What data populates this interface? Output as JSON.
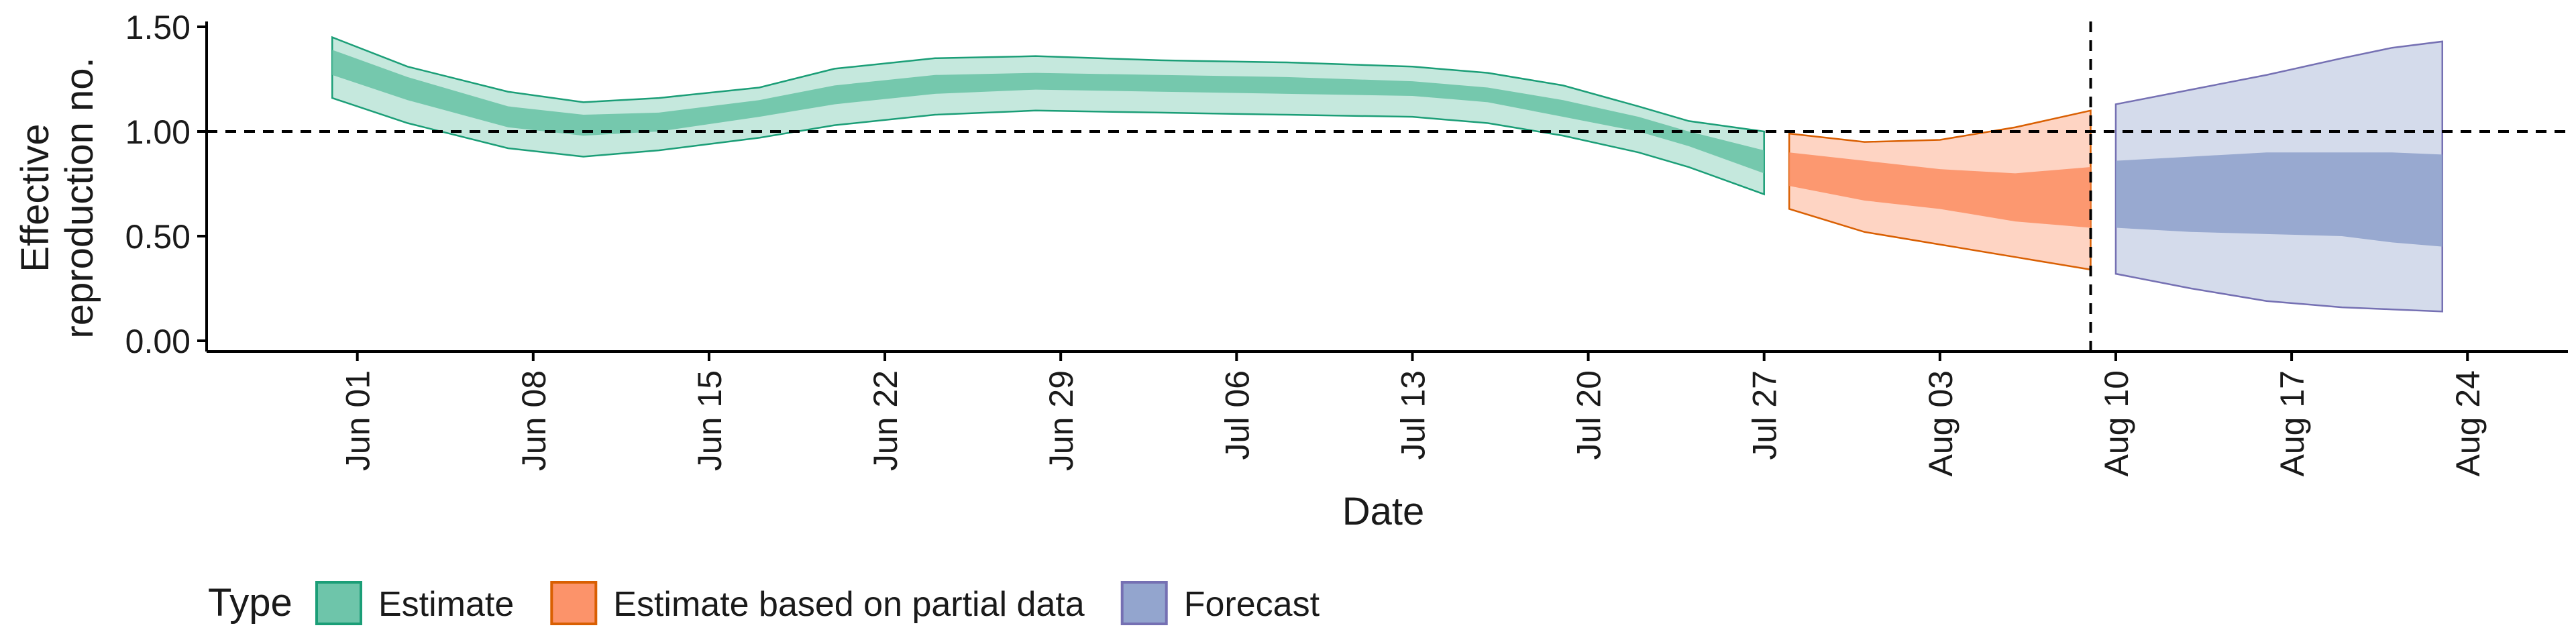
{
  "chart_data": {
    "type": "area",
    "xlabel": "Date",
    "ylabel_lines": [
      "Effective",
      "reproduction no."
    ],
    "ylim": [
      0,
      1.5
    ],
    "yticks": [
      0.0,
      0.5,
      1.0,
      1.5
    ],
    "ytick_labels": [
      "0.00",
      "0.50",
      "1.00",
      "1.50"
    ],
    "xlim": [
      "2020-05-26",
      "2020-08-28"
    ],
    "x_tick_labels": [
      "Jun 01",
      "Jun 08",
      "Jun 15",
      "Jun 22",
      "Jun 29",
      "Jul 06",
      "Jul 13",
      "Jul 20",
      "Jul 27",
      "Aug 03",
      "Aug 10",
      "Aug 17",
      "Aug 24"
    ],
    "x_tick_dates": [
      "2020-06-01",
      "2020-06-08",
      "2020-06-15",
      "2020-06-22",
      "2020-06-29",
      "2020-07-06",
      "2020-07-13",
      "2020-07-20",
      "2020-07-27",
      "2020-08-03",
      "2020-08-10",
      "2020-08-17",
      "2020-08-24"
    ],
    "reference_hline": 1.0,
    "reference_vline": "2020-08-09",
    "legend": {
      "title": "Type",
      "position": "bottom-left",
      "items": [
        "Estimate",
        "Estimate based on partial data",
        "Forecast"
      ]
    },
    "series": [
      {
        "name": "Estimate",
        "fill": "#66c2a5",
        "stroke": "#1b9e77",
        "points": [
          {
            "date": "2020-05-31",
            "lo90": 1.16,
            "lo50": 1.27,
            "hi50": 1.39,
            "hi90": 1.45
          },
          {
            "date": "2020-06-03",
            "lo90": 1.04,
            "lo50": 1.15,
            "hi50": 1.26,
            "hi90": 1.31
          },
          {
            "date": "2020-06-07",
            "lo90": 0.92,
            "lo50": 1.02,
            "hi50": 1.12,
            "hi90": 1.19
          },
          {
            "date": "2020-06-10",
            "lo90": 0.88,
            "lo50": 0.98,
            "hi50": 1.08,
            "hi90": 1.14
          },
          {
            "date": "2020-06-13",
            "lo90": 0.91,
            "lo50": 1.0,
            "hi50": 1.09,
            "hi90": 1.16
          },
          {
            "date": "2020-06-17",
            "lo90": 0.97,
            "lo50": 1.07,
            "hi50": 1.15,
            "hi90": 1.21
          },
          {
            "date": "2020-06-20",
            "lo90": 1.03,
            "lo50": 1.13,
            "hi50": 1.22,
            "hi90": 1.3
          },
          {
            "date": "2020-06-24",
            "lo90": 1.08,
            "lo50": 1.18,
            "hi50": 1.27,
            "hi90": 1.35
          },
          {
            "date": "2020-06-28",
            "lo90": 1.1,
            "lo50": 1.2,
            "hi50": 1.28,
            "hi90": 1.36
          },
          {
            "date": "2020-07-03",
            "lo90": 1.09,
            "lo50": 1.19,
            "hi50": 1.27,
            "hi90": 1.34
          },
          {
            "date": "2020-07-08",
            "lo90": 1.08,
            "lo50": 1.18,
            "hi50": 1.26,
            "hi90": 1.33
          },
          {
            "date": "2020-07-13",
            "lo90": 1.07,
            "lo50": 1.17,
            "hi50": 1.24,
            "hi90": 1.31
          },
          {
            "date": "2020-07-16",
            "lo90": 1.04,
            "lo50": 1.14,
            "hi50": 1.21,
            "hi90": 1.28
          },
          {
            "date": "2020-07-19",
            "lo90": 0.98,
            "lo50": 1.07,
            "hi50": 1.15,
            "hi90": 1.22
          },
          {
            "date": "2020-07-22",
            "lo90": 0.9,
            "lo50": 1.0,
            "hi50": 1.07,
            "hi90": 1.12
          },
          {
            "date": "2020-07-24",
            "lo90": 0.83,
            "lo50": 0.93,
            "hi50": 1.0,
            "hi90": 1.05
          },
          {
            "date": "2020-07-27",
            "lo90": 0.7,
            "lo50": 0.8,
            "hi50": 0.91,
            "hi90": 1.0
          }
        ]
      },
      {
        "name": "Estimate based on partial data",
        "fill": "#fc8d62",
        "stroke": "#d95f02",
        "points": [
          {
            "date": "2020-07-28",
            "lo90": 0.63,
            "lo50": 0.74,
            "hi50": 0.9,
            "hi90": 0.99
          },
          {
            "date": "2020-07-31",
            "lo90": 0.52,
            "lo50": 0.67,
            "hi50": 0.86,
            "hi90": 0.95
          },
          {
            "date": "2020-08-03",
            "lo90": 0.46,
            "lo50": 0.63,
            "hi50": 0.82,
            "hi90": 0.96
          },
          {
            "date": "2020-08-06",
            "lo90": 0.4,
            "lo50": 0.57,
            "hi50": 0.8,
            "hi90": 1.02
          },
          {
            "date": "2020-08-09",
            "lo90": 0.34,
            "lo50": 0.54,
            "hi50": 0.83,
            "hi90": 1.1
          }
        ]
      },
      {
        "name": "Forecast",
        "fill": "#8da0cb",
        "stroke": "#7570b3",
        "points": [
          {
            "date": "2020-08-10",
            "lo90": 0.32,
            "lo50": 0.54,
            "hi50": 0.86,
            "hi90": 1.13
          },
          {
            "date": "2020-08-13",
            "lo90": 0.25,
            "lo50": 0.52,
            "hi50": 0.88,
            "hi90": 1.2
          },
          {
            "date": "2020-08-16",
            "lo90": 0.19,
            "lo50": 0.51,
            "hi50": 0.9,
            "hi90": 1.27
          },
          {
            "date": "2020-08-19",
            "lo90": 0.16,
            "lo50": 0.5,
            "hi50": 0.9,
            "hi90": 1.35
          },
          {
            "date": "2020-08-21",
            "lo90": 0.15,
            "lo50": 0.47,
            "hi50": 0.9,
            "hi90": 1.4
          },
          {
            "date": "2020-08-23",
            "lo90": 0.14,
            "lo50": 0.45,
            "hi50": 0.89,
            "hi90": 1.43
          }
        ]
      }
    ]
  }
}
